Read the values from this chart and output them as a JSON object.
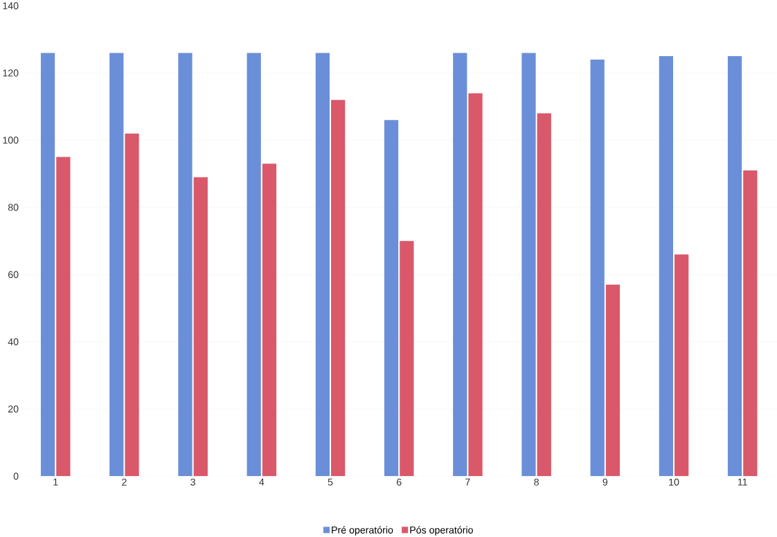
{
  "chart_data": {
    "type": "bar",
    "categories": [
      "1",
      "2",
      "3",
      "4",
      "5",
      "6",
      "7",
      "8",
      "9",
      "10",
      "11"
    ],
    "series": [
      {
        "name": "Pré operatório",
        "color": "#6a8fd8",
        "values": [
          126,
          126,
          126,
          126,
          126,
          106,
          126,
          126,
          124,
          125,
          125
        ]
      },
      {
        "name": "Pós operatório",
        "color": "#d9586a",
        "values": [
          95,
          102,
          89,
          93,
          112,
          70,
          114,
          108,
          57,
          66,
          91
        ]
      }
    ],
    "ylim": [
      0,
      140
    ],
    "yticks": [
      0,
      20,
      40,
      60,
      80,
      100,
      120,
      140
    ],
    "grid": "y",
    "legend": "bottom"
  }
}
